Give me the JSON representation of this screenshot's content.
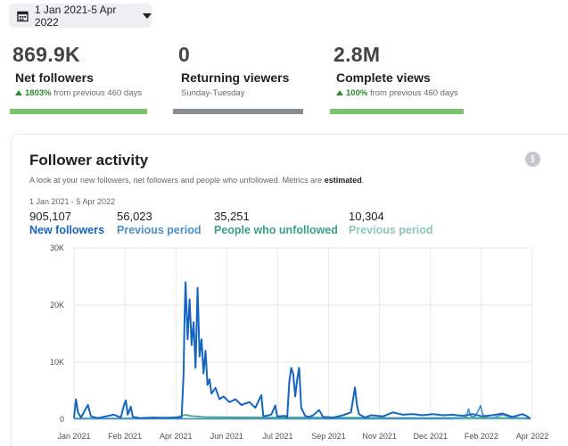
{
  "date_range": "1 Jan 2021-5 Apr 2022",
  "stats": [
    {
      "value": "869.9K",
      "label": "Net followers",
      "change": "1803%",
      "change_suffix": "from previous 460 days",
      "bar_color": "#7ac46b"
    },
    {
      "value": "0",
      "label": "Returning viewers",
      "sub": "Sunday-Tuesday",
      "bar_color": "#8a8d91"
    },
    {
      "value": "2.8M",
      "label": "Complete views",
      "change": "100%",
      "change_suffix": "from previous 460 days",
      "bar_color": "#7ac46b"
    }
  ],
  "card": {
    "title": "Follower activity",
    "desc_prefix": "A look at your new followers, net followers and people who unfollowed. Metrics are",
    "desc_bold": "estimated",
    "range": "1 Jan 2021 - 5 Apr 2022",
    "info": "i"
  },
  "metrics": [
    {
      "num": "905,107",
      "name": "New followers",
      "color": "#1565c0"
    },
    {
      "num": "56,023",
      "name": "Previous period",
      "color": "#4a90c8"
    },
    {
      "num": "35,251",
      "name": "People who unfollowed",
      "color": "#3aa08a"
    },
    {
      "num": "10,304",
      "name": "Previous period",
      "color": "#8dc7bb"
    }
  ],
  "chart_data": {
    "type": "line",
    "x_ticks": [
      "Jan 2021",
      "Feb 2021",
      "Apr 2021",
      "Jun 2021",
      "Jul 2021",
      "Sep 2021",
      "Nov 2021",
      "Dec 2021",
      "Feb 2022",
      "Apr 2022"
    ],
    "y_ticks": [
      "30K",
      "20K",
      "10K",
      "0"
    ],
    "ylim": [
      0,
      30000
    ],
    "x_range_days": [
      0,
      460
    ],
    "series": [
      {
        "name": "New followers",
        "color": "#1565c0",
        "points": [
          [
            0,
            200
          ],
          [
            2,
            3500
          ],
          [
            4,
            1200
          ],
          [
            7,
            300
          ],
          [
            14,
            2500
          ],
          [
            17,
            500
          ],
          [
            24,
            200
          ],
          [
            40,
            800
          ],
          [
            47,
            300
          ],
          [
            50,
            2400
          ],
          [
            52,
            3300
          ],
          [
            54,
            800
          ],
          [
            57,
            2200
          ],
          [
            59,
            400
          ],
          [
            66,
            200
          ],
          [
            80,
            300
          ],
          [
            93,
            250
          ],
          [
            108,
            350
          ],
          [
            110,
            8000
          ],
          [
            111,
            18000
          ],
          [
            112,
            24000
          ],
          [
            114,
            14000
          ],
          [
            116,
            21000
          ],
          [
            118,
            13000
          ],
          [
            120,
            17000
          ],
          [
            122,
            9000
          ],
          [
            124,
            23000
          ],
          [
            126,
            11000
          ],
          [
            128,
            14000
          ],
          [
            130,
            8000
          ],
          [
            132,
            12000
          ],
          [
            134,
            6000
          ],
          [
            136,
            7000
          ],
          [
            138,
            4500
          ],
          [
            142,
            5500
          ],
          [
            146,
            3500
          ],
          [
            150,
            4000
          ],
          [
            156,
            3000
          ],
          [
            162,
            3500
          ],
          [
            168,
            2500
          ],
          [
            176,
            3000
          ],
          [
            182,
            2000
          ],
          [
            186,
            3500
          ],
          [
            188,
            4200
          ],
          [
            190,
            500
          ],
          [
            198,
            800
          ],
          [
            202,
            2400
          ],
          [
            204,
            500
          ],
          [
            212,
            600
          ],
          [
            214,
            300
          ],
          [
            216,
            6500
          ],
          [
            218,
            9000
          ],
          [
            220,
            8000
          ],
          [
            222,
            4000
          ],
          [
            224,
            7000
          ],
          [
            226,
            9000
          ],
          [
            228,
            2000
          ],
          [
            232,
            600
          ],
          [
            236,
            400
          ],
          [
            240,
            700
          ],
          [
            246,
            1600
          ],
          [
            250,
            400
          ],
          [
            260,
            300
          ],
          [
            270,
            700
          ],
          [
            278,
            1200
          ],
          [
            282,
            5600
          ],
          [
            284,
            2500
          ],
          [
            286,
            900
          ],
          [
            292,
            300
          ],
          [
            298,
            700
          ],
          [
            310,
            500
          ],
          [
            320,
            1200
          ],
          [
            330,
            800
          ],
          [
            340,
            900
          ],
          [
            350,
            700
          ],
          [
            360,
            900
          ],
          [
            370,
            700
          ],
          [
            380,
            800
          ],
          [
            390,
            600
          ],
          [
            400,
            900
          ],
          [
            410,
            500
          ],
          [
            420,
            700
          ],
          [
            430,
            1000
          ],
          [
            440,
            400
          ],
          [
            450,
            900
          ],
          [
            455,
            500
          ],
          [
            458,
            100
          ]
        ]
      },
      {
        "name": "Previous period",
        "color": "#4a90c8",
        "points": [
          [
            0,
            100
          ],
          [
            100,
            100
          ],
          [
            200,
            100
          ],
          [
            300,
            100
          ],
          [
            380,
            100
          ],
          [
            390,
            200
          ],
          [
            394,
            500
          ],
          [
            396,
            1800
          ],
          [
            398,
            600
          ],
          [
            402,
            400
          ],
          [
            406,
            1600
          ],
          [
            408,
            2400
          ],
          [
            410,
            900
          ],
          [
            414,
            300
          ],
          [
            420,
            200
          ],
          [
            430,
            800
          ],
          [
            440,
            300
          ],
          [
            450,
            200
          ],
          [
            458,
            100
          ]
        ]
      },
      {
        "name": "People who unfollowed",
        "color": "#3aa08a",
        "points": [
          [
            0,
            150
          ],
          [
            40,
            150
          ],
          [
            100,
            200
          ],
          [
            110,
            700
          ],
          [
            112,
            800
          ],
          [
            116,
            600
          ],
          [
            130,
            400
          ],
          [
            160,
            350
          ],
          [
            200,
            300
          ],
          [
            260,
            300
          ],
          [
            320,
            250
          ],
          [
            380,
            250
          ],
          [
            420,
            220
          ],
          [
            458,
            200
          ]
        ]
      },
      {
        "name": "Previous period",
        "color": "#8dc7bb",
        "points": [
          [
            0,
            80
          ],
          [
            100,
            80
          ],
          [
            200,
            80
          ],
          [
            300,
            80
          ],
          [
            400,
            80
          ],
          [
            458,
            80
          ]
        ]
      }
    ]
  }
}
